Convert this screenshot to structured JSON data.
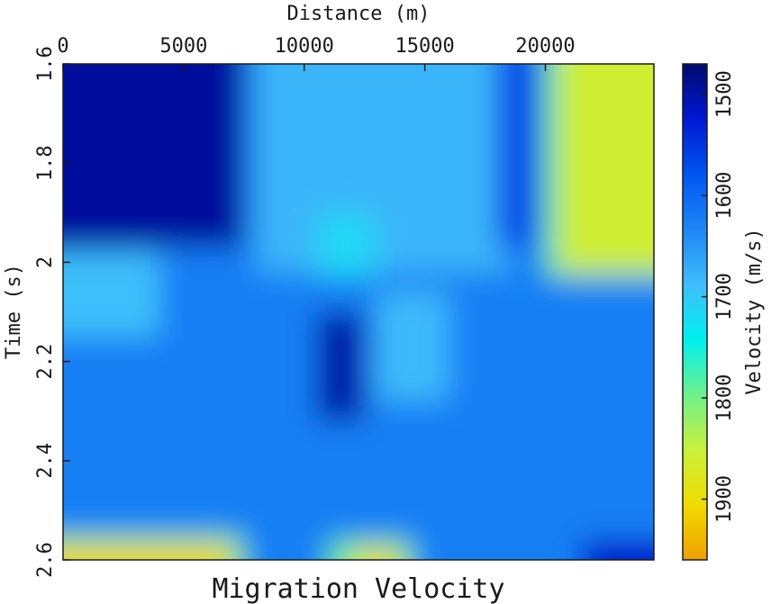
{
  "chart_data": {
    "type": "heatmap",
    "title": "Migration Velocity",
    "xlabel": "Distance (m)",
    "ylabel": "Time (s)",
    "colorbar_label": "Velocity (m/s)",
    "x_ticks": [
      "0",
      "5000",
      "10000",
      "15000",
      "20000"
    ],
    "y_ticks": [
      "1.6",
      "1.8",
      "2",
      "2.2",
      "2.4",
      "2.6"
    ],
    "colorbar_ticks": [
      "1500",
      "1600",
      "1700",
      "1800",
      "1900"
    ],
    "xlim": [
      0,
      24500
    ],
    "ylim": [
      1.6,
      2.6
    ],
    "clim": [
      1470,
      1960
    ],
    "colormap": [
      "#000a6e",
      "#0018d2",
      "#0056f0",
      "#1e86f5",
      "#3fbdfa",
      "#00f0f0",
      "#6ef08c",
      "#c8f03c",
      "#f0dc00",
      "#f0a000"
    ],
    "base_value": 1625,
    "regions": [
      {
        "x": [
          0,
          7500
        ],
        "y": [
          1.6,
          1.97
        ],
        "value": 1495
      },
      {
        "x": [
          8000,
          18500
        ],
        "y": [
          1.6,
          2.02
        ],
        "value": 1680
      },
      {
        "x": [
          10500,
          13000
        ],
        "y": [
          1.9,
          2.03
        ],
        "value": 1715
      },
      {
        "x": [
          0,
          4000
        ],
        "y": [
          1.98,
          2.15
        ],
        "value": 1690
      },
      {
        "x": [
          18000,
          19500
        ],
        "y": [
          1.6,
          1.97
        ],
        "value": 1560
      },
      {
        "x": [
          20000,
          24500
        ],
        "y": [
          1.6,
          2.03
        ],
        "value": 1780
      },
      {
        "x": [
          20500,
          24500
        ],
        "y": [
          1.6,
          2.02
        ],
        "value": 1860
      },
      {
        "x": [
          10500,
          12500
        ],
        "y": [
          2.1,
          2.32
        ],
        "value": 1500
      },
      {
        "x": [
          13000,
          16000
        ],
        "y": [
          2.06,
          2.28
        ],
        "value": 1685
      },
      {
        "x": [
          0,
          7500
        ],
        "y": [
          2.55,
          2.6
        ],
        "value": 1790
      },
      {
        "x": [
          0,
          7000
        ],
        "y": [
          2.57,
          2.6
        ],
        "value": 1910
      },
      {
        "x": [
          11000,
          14500
        ],
        "y": [
          2.56,
          2.6
        ],
        "value": 1790
      },
      {
        "x": [
          12000,
          14000
        ],
        "y": [
          2.58,
          2.6
        ],
        "value": 1900
      },
      {
        "x": [
          21500,
          24500
        ],
        "y": [
          2.56,
          2.6
        ],
        "value": 1520
      }
    ]
  }
}
